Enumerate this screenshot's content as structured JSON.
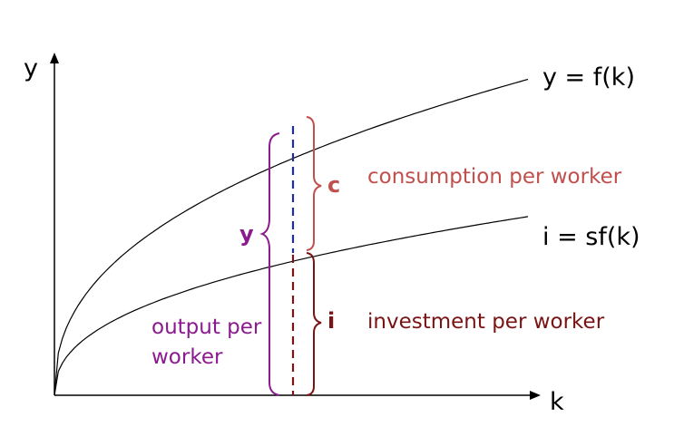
{
  "axes": {
    "y_label": "y",
    "x_label": "k"
  },
  "curves": {
    "output": {
      "label": "y = f(k)",
      "k_end": 1.0,
      "y_end": 0.99,
      "shape": "sqrt-like"
    },
    "investment": {
      "label": "i = sf(k)",
      "k_end": 1.0,
      "y_end": 0.56,
      "shape": "sqrt-like"
    }
  },
  "brackets": {
    "consumption": {
      "letter": "c",
      "text": "consumption per worker"
    },
    "investment": {
      "letter": "i",
      "text": "investment per worker"
    },
    "output": {
      "letter": "y",
      "text_line1": "output per",
      "text_line2": "worker"
    }
  },
  "colors": {
    "axis": "#000000",
    "output_bracket": "#8b1a8f",
    "consumption": "#c0504d",
    "investment": "#7a1414",
    "output_dash": "#1f2f8f",
    "investment_dash": "#7a1414"
  }
}
